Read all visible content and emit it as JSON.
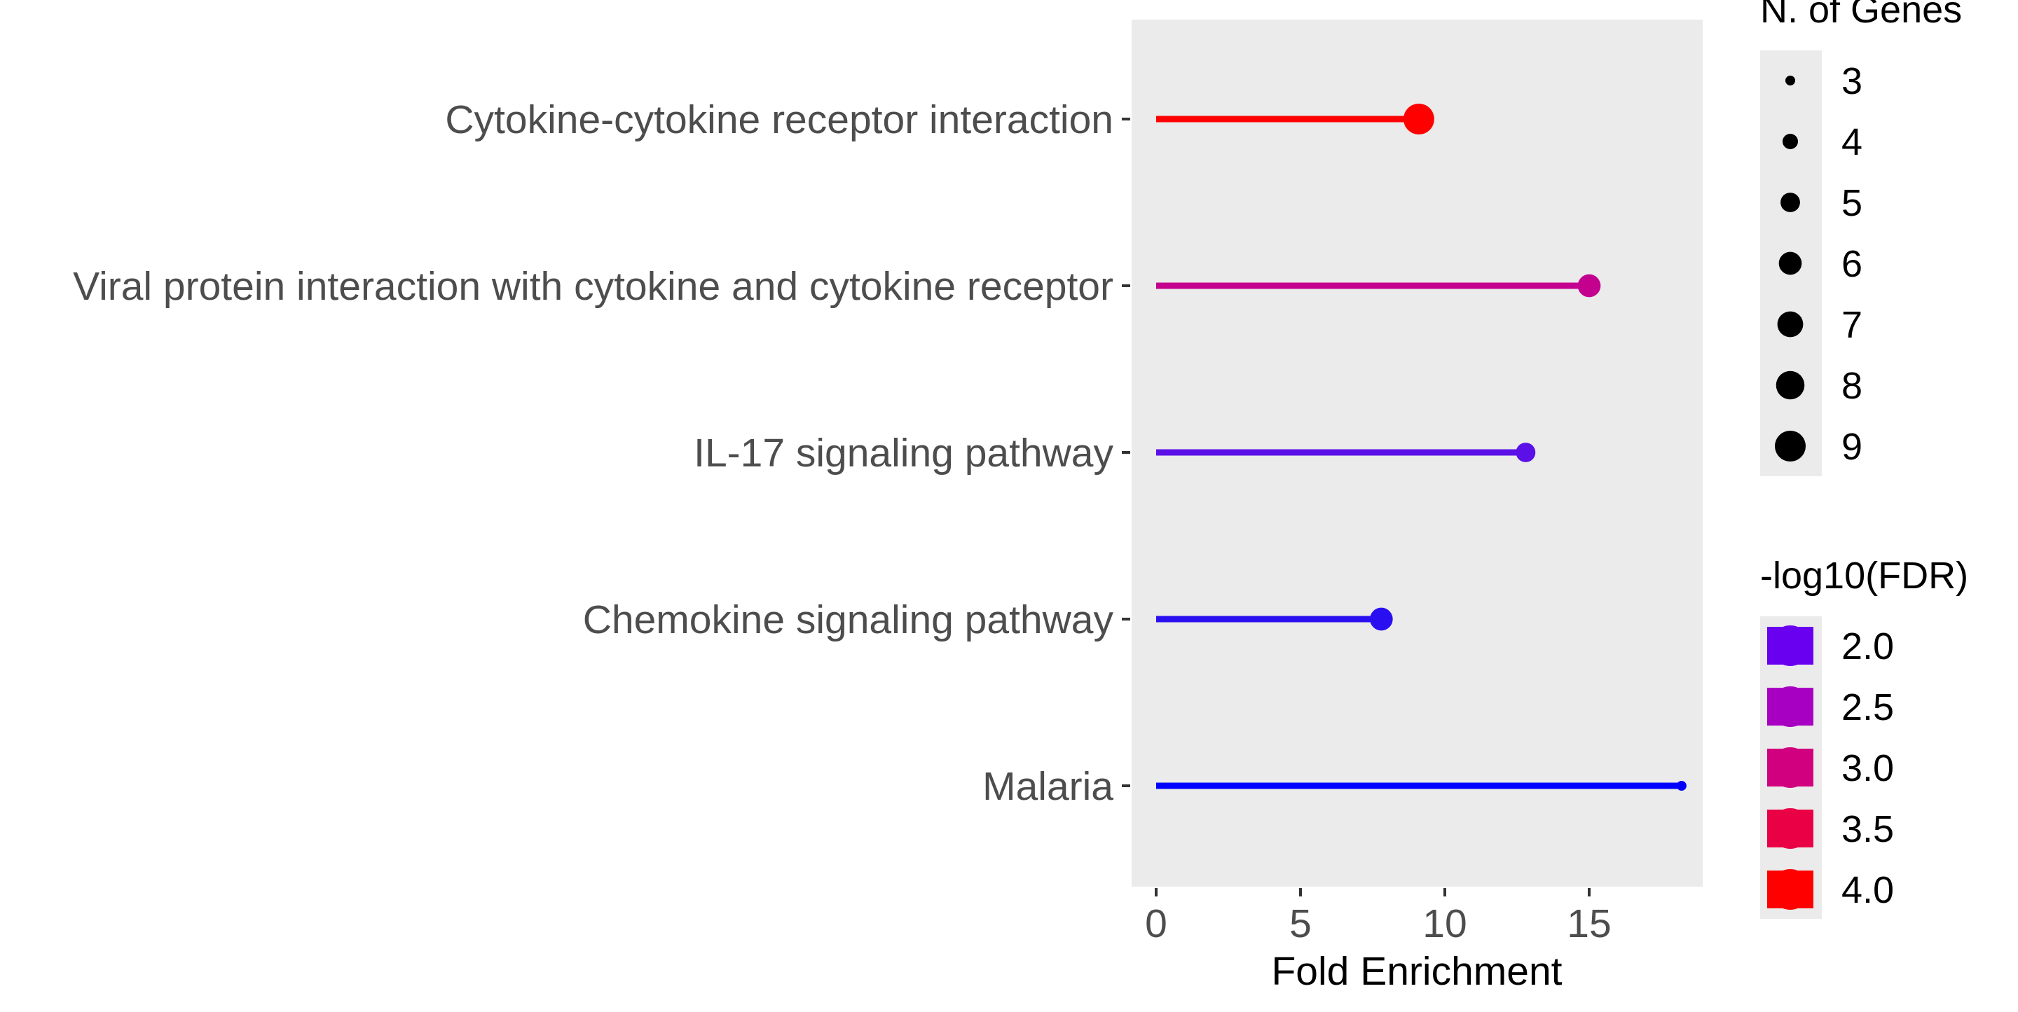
{
  "chart_data": {
    "type": "lollipop",
    "title": "",
    "xlabel": "Fold Enrichment",
    "ylabel": "",
    "xlim": [
      -0.8,
      19.2
    ],
    "x_ticks": [
      0,
      5,
      10,
      15
    ],
    "grid": false,
    "panel_background": "#ebebeb",
    "legend_placement": "right",
    "categories": [
      "Cytokine-cytokine receptor interaction",
      "Viral protein interaction with cytokine and cytokine receptor",
      "IL-17 signaling pathway",
      "Chemokine signaling pathway",
      "Malaria"
    ],
    "fold_enrichment": [
      9.1,
      15.0,
      12.8,
      7.8,
      18.2
    ],
    "n_genes": [
      9,
      6,
      5,
      6,
      3
    ],
    "neg_log10_fdr": [
      4.0,
      3.0,
      2.0,
      1.7,
      1.5
    ],
    "colors": [
      "#ff0000",
      "#c4008f",
      "#5b10e8",
      "#2a10f0",
      "#0000ff"
    ],
    "size_legend": {
      "title": "N. of Genes",
      "values": [
        3,
        4,
        5,
        6,
        7,
        8,
        9
      ]
    },
    "color_legend": {
      "title": "-log10(FDR)",
      "labels": [
        "2.0",
        "2.5",
        "3.0",
        "3.5",
        "4.0"
      ],
      "colors": [
        "#6a00f0",
        "#a800c2",
        "#d1007f",
        "#ea0045",
        "#ff0000"
      ]
    }
  }
}
